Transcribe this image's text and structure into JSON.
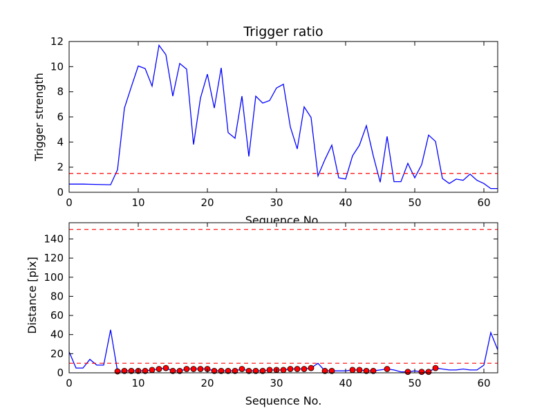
{
  "chart_data": [
    {
      "type": "line",
      "title": "Trigger ratio",
      "xlabel": "Sequence No.",
      "ylabel": "Trigger strength",
      "xlim": [
        0,
        62
      ],
      "ylim": [
        0,
        12
      ],
      "xticks": [
        0,
        10,
        20,
        30,
        40,
        50,
        60
      ],
      "yticks": [
        0,
        2,
        4,
        6,
        8,
        10,
        12
      ],
      "grid": false,
      "series": [
        {
          "kind": "line",
          "color": "#0000ff",
          "x": [
            0,
            2,
            6,
            7,
            8,
            9,
            10,
            11,
            12,
            13,
            14,
            15,
            16,
            17,
            18,
            19,
            20,
            21,
            22,
            23,
            24,
            25,
            26,
            27,
            28,
            29,
            30,
            31,
            32,
            33,
            34,
            35,
            36,
            37,
            38,
            39,
            40,
            41,
            42,
            43,
            44,
            45,
            46,
            47,
            48,
            49,
            50,
            51,
            52,
            53,
            54,
            55,
            56,
            57,
            58,
            59,
            60,
            61,
            62
          ],
          "y": [
            0.65,
            0.65,
            0.6,
            1.8,
            6.7,
            8.4,
            10.05,
            9.85,
            8.45,
            11.7,
            10.95,
            7.65,
            10.25,
            9.8,
            3.8,
            7.5,
            9.4,
            6.7,
            9.9,
            4.75,
            4.3,
            7.65,
            2.85,
            7.65,
            7.1,
            7.3,
            8.3,
            8.6,
            5.2,
            3.45,
            6.8,
            5.95,
            1.3,
            2.6,
            3.75,
            1.15,
            1.05,
            2.9,
            3.75,
            5.3,
            2.9,
            0.8,
            4.45,
            0.85,
            0.85,
            2.3,
            1.15,
            2.2,
            4.55,
            4.05,
            1.1,
            0.7,
            1.05,
            0.95,
            1.45,
            0.95,
            0.7,
            0.3,
            0.3
          ]
        },
        {
          "kind": "threshold",
          "color": "#ff0000",
          "style": "dashed",
          "y": 1.5
        }
      ]
    },
    {
      "type": "line",
      "title": "",
      "xlabel": "Sequence No.",
      "ylabel": "Distance [pix]",
      "xlim": [
        0,
        62
      ],
      "ylim": [
        0,
        157
      ],
      "xticks": [
        0,
        10,
        20,
        30,
        40,
        50,
        60
      ],
      "yticks": [
        0,
        20,
        40,
        60,
        80,
        100,
        120,
        140
      ],
      "grid": false,
      "series": [
        {
          "kind": "line",
          "color": "#0000ff",
          "x": [
            0,
            1,
            2,
            3,
            4,
            5,
            6,
            7,
            8,
            9,
            10,
            11,
            12,
            13,
            14,
            15,
            16,
            17,
            18,
            19,
            20,
            21,
            22,
            23,
            24,
            25,
            26,
            27,
            28,
            29,
            30,
            31,
            32,
            33,
            34,
            35,
            36,
            37,
            38,
            39,
            40,
            41,
            42,
            43,
            44,
            45,
            46,
            47,
            48,
            49,
            50,
            51,
            52,
            53,
            54,
            55,
            56,
            57,
            58,
            59,
            60,
            61,
            62
          ],
          "y": [
            22,
            5,
            5,
            14,
            8,
            8,
            45,
            1.5,
            2,
            2,
            2,
            2,
            3,
            4,
            5,
            2,
            2,
            4,
            4,
            4,
            4,
            2,
            2,
            2,
            2,
            4,
            2,
            2,
            2,
            3,
            3,
            3,
            4,
            4,
            4,
            5,
            10,
            2,
            2,
            2,
            2,
            3,
            3,
            2,
            2,
            3,
            4,
            3,
            1,
            1,
            2,
            1,
            1,
            5,
            4,
            3,
            3,
            4,
            3,
            3,
            8,
            42,
            24
          ]
        },
        {
          "kind": "markers",
          "color": "#ff0000",
          "x": [
            7,
            8,
            9,
            10,
            11,
            12,
            13,
            14,
            15,
            16,
            17,
            18,
            19,
            20,
            21,
            22,
            23,
            24,
            25,
            26,
            27,
            28,
            29,
            30,
            31,
            32,
            33,
            34,
            35,
            37,
            38,
            41,
            42,
            43,
            44,
            46,
            49,
            51,
            52,
            53
          ],
          "y": [
            1.5,
            2,
            2,
            2,
            2,
            3,
            4,
            5,
            2,
            2,
            4,
            4,
            4,
            4,
            2,
            2,
            2,
            2,
            4,
            2,
            2,
            2,
            3,
            3,
            3,
            4,
            4,
            4,
            5,
            2,
            2,
            3,
            3,
            2,
            2,
            4,
            1,
            1,
            1,
            5
          ]
        },
        {
          "kind": "threshold",
          "color": "#ff0000",
          "style": "dashed",
          "y": 150
        },
        {
          "kind": "threshold",
          "color": "#ff0000",
          "style": "dashed",
          "y": 10
        }
      ]
    }
  ]
}
